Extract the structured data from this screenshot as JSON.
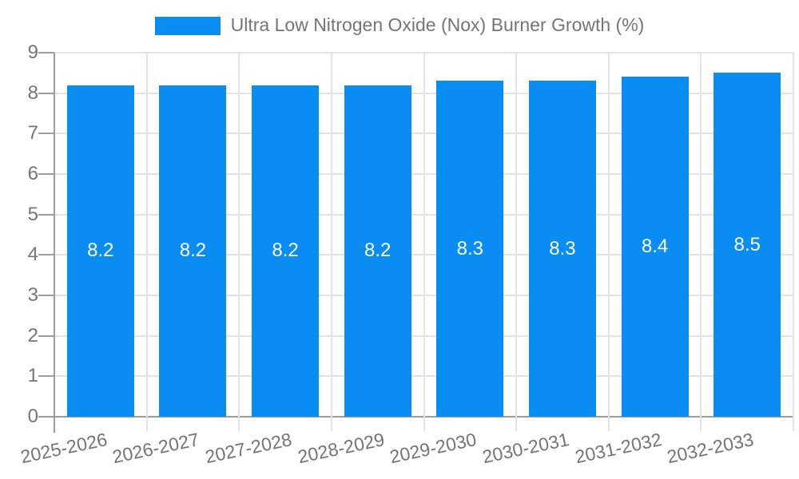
{
  "legend": {
    "label": "Ultra Low Nitrogen Oxide (Nox) Burner Growth (%)"
  },
  "chart_data": {
    "type": "bar",
    "title": "Ultra Low Nitrogen Oxide (Nox) Burner Growth (%)",
    "categories": [
      "2025-2026",
      "2026-2027",
      "2027-2028",
      "2028-2029",
      "2029-2030",
      "2030-2031",
      "2031-2032",
      "2032-2033"
    ],
    "values": [
      8.2,
      8.2,
      8.2,
      8.2,
      8.3,
      8.3,
      8.4,
      8.5
    ],
    "value_labels": [
      "8.2",
      "8.2",
      "8.2",
      "8.2",
      "8.3",
      "8.3",
      "8.4",
      "8.5"
    ],
    "xlabel": "",
    "ylabel": "",
    "ylim": [
      0,
      9
    ],
    "yticks": [
      0,
      1,
      2,
      3,
      4,
      5,
      6,
      7,
      8,
      9
    ],
    "grid": true,
    "legend_position": "top",
    "colors": {
      "bar": "#0A8DF2",
      "grid": "#E2E2E2",
      "axis": "#9E9E9E",
      "text": "#757575",
      "bar_label": "#FFFFFF",
      "background": "#FFFFFF"
    }
  }
}
